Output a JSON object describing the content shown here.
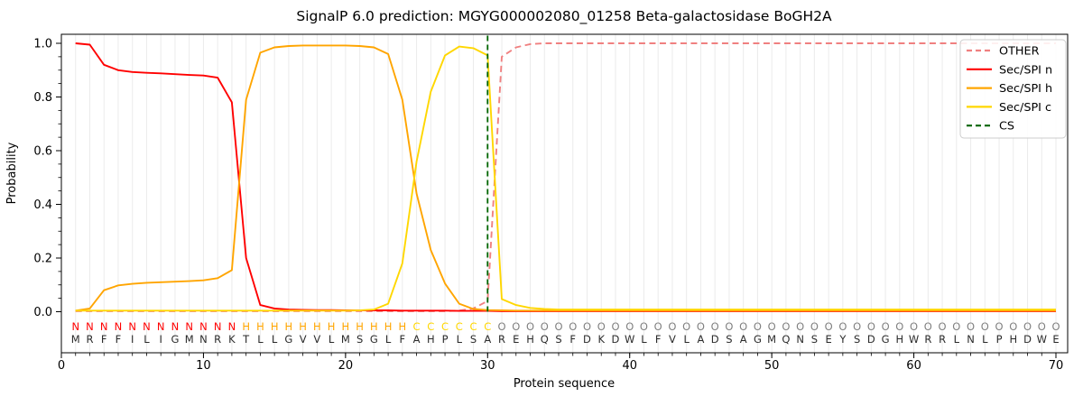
{
  "figure": {
    "background": "#ffffff"
  },
  "chart_data": {
    "type": "line",
    "title": "SignalP 6.0 prediction: MGYG000002080_01258 Beta-galactosidase BoGH2A",
    "xlabel": "Protein sequence",
    "ylabel": "Probability",
    "xlim": [
      0,
      70.8
    ],
    "ylim": [
      -0.15,
      1.03
    ],
    "x_ticks": [
      0,
      10,
      20,
      30,
      40,
      50,
      60,
      70
    ],
    "x_tick_labels": [
      "0",
      "10",
      "20",
      "30",
      "40",
      "50",
      "60",
      "70"
    ],
    "y_ticks": [
      0.0,
      0.2,
      0.4,
      0.6,
      0.8,
      1.0
    ],
    "y_tick_labels": [
      "0.0",
      "0.2",
      "0.4",
      "0.6",
      "0.8",
      "1.0"
    ],
    "y_minor_step": 0.05,
    "grid": "vertical line per residue",
    "grid_color": "#ebebeb",
    "spine_color": "#000000",
    "text_color": "#000000",
    "legend_position": "upper right",
    "x_start": 1,
    "series": [
      {
        "name": "OTHER",
        "color": "#f08080",
        "dash": true,
        "values": [
          0.002,
          0.002,
          0.002,
          0.002,
          0.002,
          0.002,
          0.002,
          0.002,
          0.002,
          0.002,
          0.002,
          0.002,
          0.002,
          0.002,
          0.002,
          0.002,
          0.002,
          0.002,
          0.002,
          0.002,
          0.002,
          0.002,
          0.002,
          0.002,
          0.002,
          0.002,
          0.002,
          0.004,
          0.012,
          0.04,
          0.95,
          0.985,
          0.997,
          1.0,
          1.0,
          1.0,
          1.0,
          1.0,
          1.0,
          1.0,
          1.0,
          1.0,
          1.0,
          1.0,
          1.0,
          1.0,
          1.0,
          1.0,
          1.0,
          1.0,
          1.0,
          1.0,
          1.0,
          1.0,
          1.0,
          1.0,
          1.0,
          1.0,
          1.0,
          1.0,
          1.0,
          1.0,
          1.0,
          1.0,
          1.0,
          1.0,
          1.0,
          1.0,
          1.0,
          1.0
        ]
      },
      {
        "name": "Sec/SPI n",
        "color": "#ff0000",
        "dash": false,
        "values": [
          1.0,
          0.995,
          0.92,
          0.9,
          0.893,
          0.89,
          0.888,
          0.885,
          0.882,
          0.88,
          0.872,
          0.78,
          0.2,
          0.025,
          0.012,
          0.008,
          0.007,
          0.006,
          0.006,
          0.005,
          0.005,
          0.005,
          0.005,
          0.004,
          0.004,
          0.004,
          0.004,
          0.003,
          0.003,
          0.003,
          0.002,
          0.002,
          0.002,
          0.002,
          0.002,
          0.002,
          0.002,
          0.002,
          0.002,
          0.002,
          0.002,
          0.002,
          0.002,
          0.002,
          0.002,
          0.002,
          0.002,
          0.002,
          0.002,
          0.002,
          0.002,
          0.002,
          0.002,
          0.002,
          0.002,
          0.002,
          0.002,
          0.002,
          0.002,
          0.002,
          0.002,
          0.002,
          0.002,
          0.002,
          0.002,
          0.002,
          0.002,
          0.002,
          0.002,
          0.002
        ]
      },
      {
        "name": "Sec/SPI h",
        "color": "#ffa500",
        "dash": false,
        "values": [
          0.004,
          0.012,
          0.08,
          0.098,
          0.104,
          0.108,
          0.11,
          0.112,
          0.114,
          0.117,
          0.125,
          0.155,
          0.79,
          0.965,
          0.985,
          0.99,
          0.992,
          0.992,
          0.992,
          0.992,
          0.99,
          0.985,
          0.96,
          0.79,
          0.44,
          0.23,
          0.105,
          0.03,
          0.01,
          0.006,
          0.005,
          0.004,
          0.004,
          0.004,
          0.004,
          0.004,
          0.004,
          0.004,
          0.004,
          0.004,
          0.004,
          0.004,
          0.004,
          0.004,
          0.004,
          0.004,
          0.004,
          0.004,
          0.004,
          0.004,
          0.004,
          0.004,
          0.004,
          0.004,
          0.004,
          0.004,
          0.004,
          0.004,
          0.004,
          0.004,
          0.004,
          0.004,
          0.004,
          0.004,
          0.004,
          0.004,
          0.004,
          0.004,
          0.004,
          0.004
        ]
      },
      {
        "name": "Sec/SPI c",
        "color": "#ffd700",
        "dash": false,
        "values": [
          0.004,
          0.004,
          0.004,
          0.004,
          0.004,
          0.004,
          0.004,
          0.004,
          0.004,
          0.004,
          0.004,
          0.004,
          0.004,
          0.004,
          0.004,
          0.004,
          0.004,
          0.004,
          0.004,
          0.004,
          0.005,
          0.008,
          0.03,
          0.18,
          0.56,
          0.82,
          0.955,
          0.988,
          0.982,
          0.955,
          0.047,
          0.025,
          0.014,
          0.01,
          0.008,
          0.008,
          0.008,
          0.008,
          0.008,
          0.008,
          0.008,
          0.008,
          0.008,
          0.008,
          0.008,
          0.008,
          0.008,
          0.008,
          0.008,
          0.008,
          0.008,
          0.008,
          0.008,
          0.008,
          0.008,
          0.008,
          0.008,
          0.008,
          0.008,
          0.008,
          0.008,
          0.008,
          0.008,
          0.008,
          0.008,
          0.008,
          0.008,
          0.008,
          0.008,
          0.008
        ]
      },
      {
        "name": "CS",
        "color": "#006400",
        "dash": true,
        "vline_x": 30
      }
    ],
    "cs_position": 30,
    "sequence": "MRFFILIGMNRKTLLGVVLMSGLFAHPLSAREHQSFDKDWLFVLADSAGMQNSEYSDGHWRRLNLPHDWE",
    "regions": "NNNNNNNNNNNNHHHHHHHHHHHHCCCCCCOOOOOOOOOOOOOOOOOOOOOOOOOOOOOOOOOOOOOOOO",
    "region_colors": {
      "N": "#ff0000",
      "H": "#ffa500",
      "C": "#ffd700",
      "O": "#808080"
    },
    "sequence_color": "#2b2b2b"
  }
}
